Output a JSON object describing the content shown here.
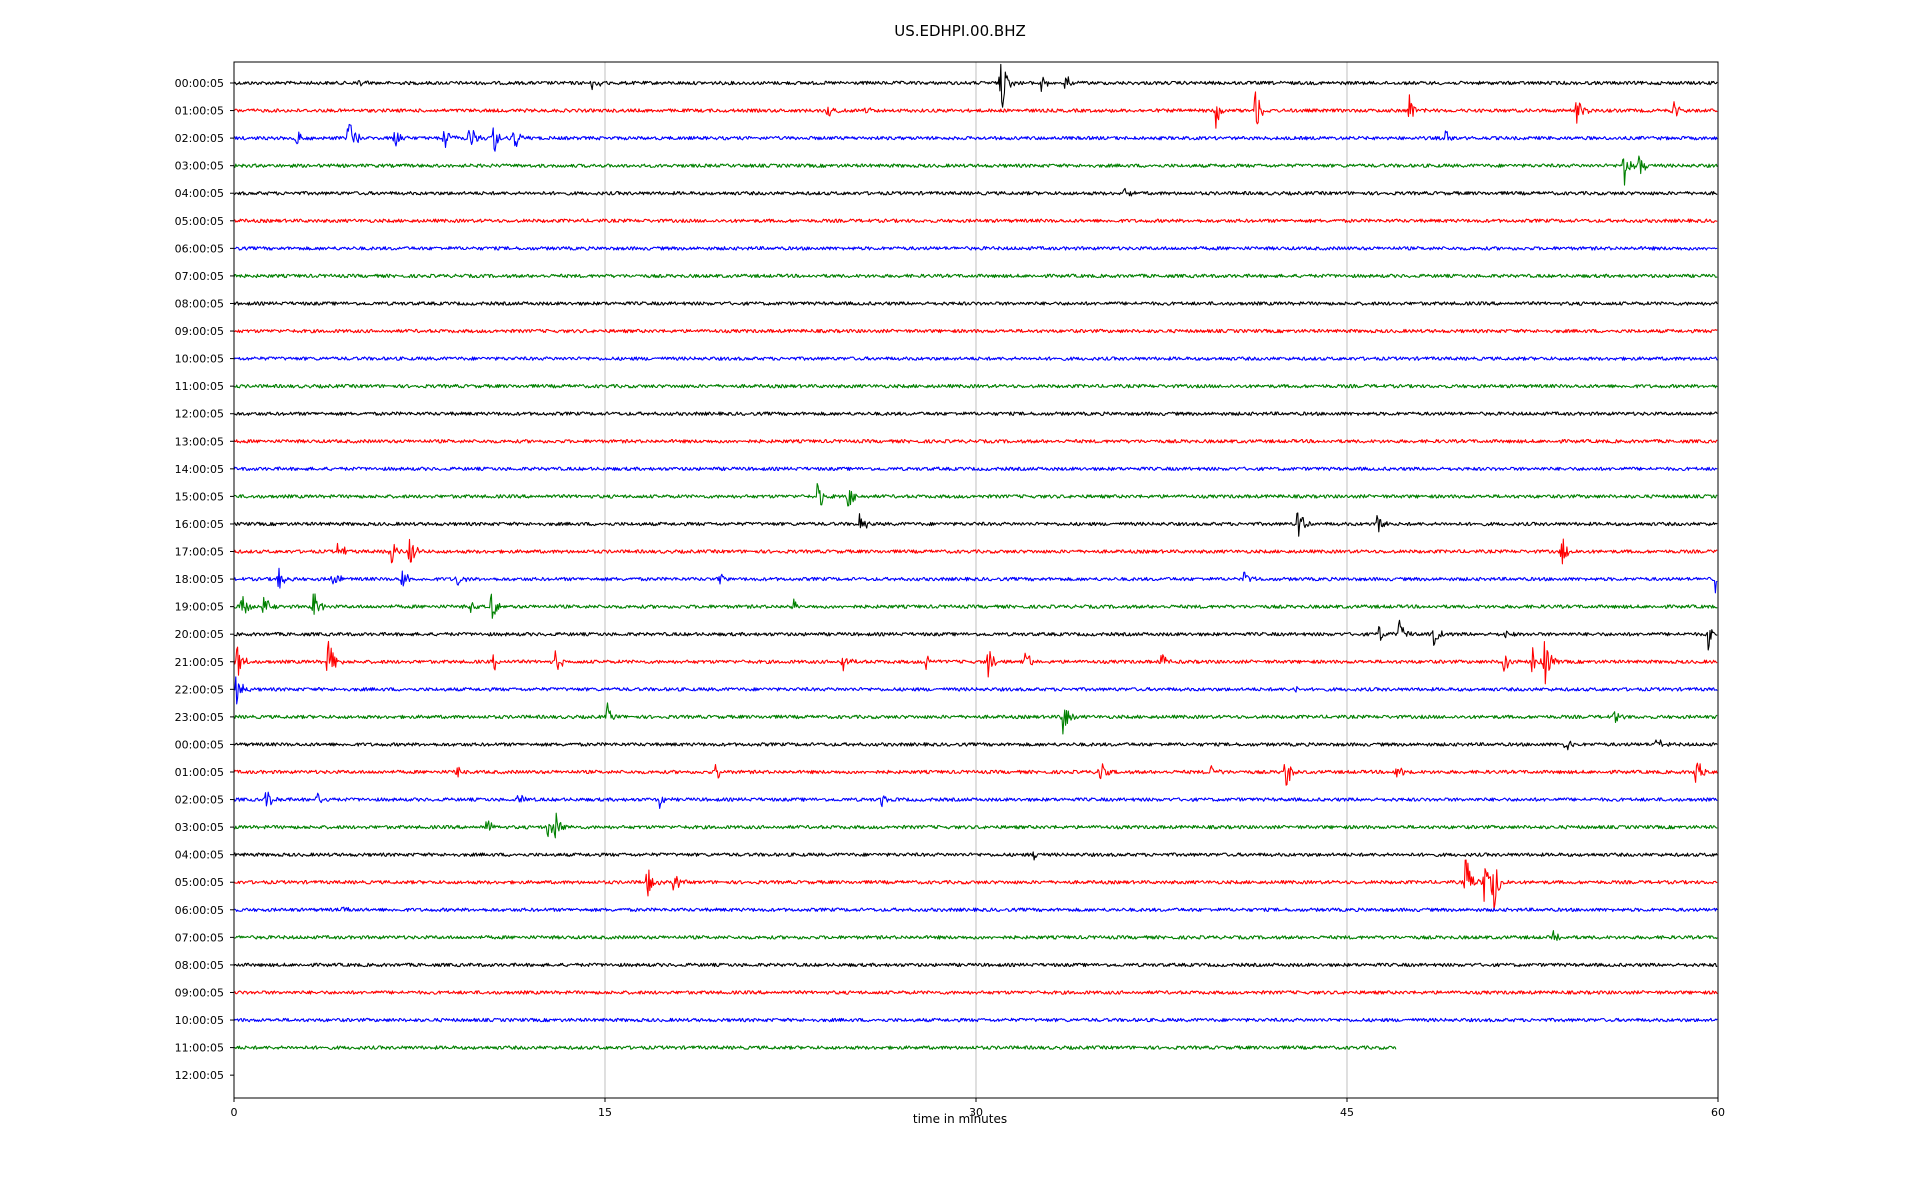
{
  "chart_data": {
    "type": "line",
    "title": "US.EDHPI.00.BHZ",
    "xlabel": "time in minutes",
    "ylabel": "",
    "xlim": [
      0,
      60
    ],
    "xticks": [
      0,
      15,
      30,
      45,
      60
    ],
    "xtick_labels": [
      "0",
      "15",
      "30",
      "45",
      "60"
    ],
    "grid": "vertical lines at x ticks",
    "colors": [
      "#000000",
      "#ff0000",
      "#0000ff",
      "#008000"
    ],
    "row_labels": [
      "00:00:05",
      "01:00:05",
      "02:00:05",
      "03:00:05",
      "04:00:05",
      "05:00:05",
      "06:00:05",
      "07:00:05",
      "08:00:05",
      "09:00:05",
      "10:00:05",
      "11:00:05",
      "12:00:05",
      "13:00:05",
      "14:00:05",
      "15:00:05",
      "16:00:05",
      "17:00:05",
      "18:00:05",
      "19:00:05",
      "20:00:05",
      "21:00:05",
      "22:00:05",
      "23:00:05",
      "00:00:05",
      "01:00:05",
      "02:00:05",
      "03:00:05",
      "04:00:05",
      "05:00:05",
      "06:00:05",
      "07:00:05",
      "08:00:05",
      "09:00:05",
      "10:00:05",
      "11:00:05",
      "12:00:05"
    ],
    "traces": [
      {
        "row": 0,
        "end_minute": 60,
        "events": [
          {
            "t": 5.0,
            "amp": 0.3
          },
          {
            "t": 14.5,
            "amp": 0.45
          },
          {
            "t": 31.0,
            "amp": 1.7
          },
          {
            "t": 32.6,
            "amp": 0.6
          },
          {
            "t": 33.6,
            "amp": 0.5
          }
        ]
      },
      {
        "row": 1,
        "end_minute": 60,
        "events": [
          {
            "t": 24.0,
            "amp": 0.45
          },
          {
            "t": 25.5,
            "amp": 0.3
          },
          {
            "t": 39.7,
            "amp": 0.8
          },
          {
            "t": 41.3,
            "amp": 1.1
          },
          {
            "t": 47.5,
            "amp": 0.9
          },
          {
            "t": 54.3,
            "amp": 0.8
          },
          {
            "t": 58.2,
            "amp": 0.45
          }
        ]
      },
      {
        "row": 2,
        "end_minute": 60,
        "events": [
          {
            "t": 2.5,
            "amp": 0.8
          },
          {
            "t": 4.6,
            "amp": 1.6
          },
          {
            "t": 6.5,
            "amp": 0.8
          },
          {
            "t": 8.5,
            "amp": 0.6
          },
          {
            "t": 9.5,
            "amp": 0.8
          },
          {
            "t": 10.5,
            "amp": 0.8
          },
          {
            "t": 11.3,
            "amp": 0.7
          },
          {
            "t": 49.0,
            "amp": 0.4
          }
        ]
      },
      {
        "row": 3,
        "end_minute": 60,
        "events": [
          {
            "t": 56.2,
            "amp": 1.0
          },
          {
            "t": 56.8,
            "amp": 0.6
          }
        ]
      },
      {
        "row": 4,
        "end_minute": 60,
        "events": [
          {
            "t": 36.0,
            "amp": 0.35
          }
        ]
      },
      {
        "row": 5,
        "end_minute": 60,
        "events": []
      },
      {
        "row": 6,
        "end_minute": 60,
        "events": []
      },
      {
        "row": 7,
        "end_minute": 60,
        "events": []
      },
      {
        "row": 8,
        "end_minute": 60,
        "events": []
      },
      {
        "row": 9,
        "end_minute": 60,
        "events": []
      },
      {
        "row": 10,
        "end_minute": 60,
        "events": []
      },
      {
        "row": 11,
        "end_minute": 60,
        "events": []
      },
      {
        "row": 12,
        "end_minute": 60,
        "events": []
      },
      {
        "row": 13,
        "end_minute": 60,
        "events": []
      },
      {
        "row": 14,
        "end_minute": 60,
        "events": []
      },
      {
        "row": 15,
        "end_minute": 60,
        "events": [
          {
            "t": 23.6,
            "amp": 0.8
          },
          {
            "t": 24.8,
            "amp": 0.7
          }
        ]
      },
      {
        "row": 16,
        "end_minute": 60,
        "events": [
          {
            "t": 25.3,
            "amp": 0.6
          },
          {
            "t": 43.0,
            "amp": 0.9
          },
          {
            "t": 46.2,
            "amp": 0.8
          }
        ]
      },
      {
        "row": 17,
        "end_minute": 60,
        "events": [
          {
            "t": 4.2,
            "amp": 0.6
          },
          {
            "t": 6.3,
            "amp": 0.9
          },
          {
            "t": 7.1,
            "amp": 0.9
          },
          {
            "t": 53.7,
            "amp": 0.9
          }
        ]
      },
      {
        "row": 18,
        "end_minute": 60,
        "events": [
          {
            "t": 1.8,
            "amp": 0.6
          },
          {
            "t": 4.0,
            "amp": 0.55
          },
          {
            "t": 6.8,
            "amp": 0.6
          },
          {
            "t": 9.0,
            "amp": 0.45
          },
          {
            "t": 19.6,
            "amp": 0.5
          },
          {
            "t": 40.8,
            "amp": 0.5
          },
          {
            "t": 59.9,
            "amp": 0.8
          }
        ]
      },
      {
        "row": 19,
        "end_minute": 60,
        "events": [
          {
            "t": 0.3,
            "amp": 0.8
          },
          {
            "t": 1.2,
            "amp": 0.6
          },
          {
            "t": 3.2,
            "amp": 0.9
          },
          {
            "t": 9.5,
            "amp": 0.4
          },
          {
            "t": 10.4,
            "amp": 0.8
          },
          {
            "t": 22.6,
            "amp": 0.35
          }
        ]
      },
      {
        "row": 20,
        "end_minute": 60,
        "events": [
          {
            "t": 46.3,
            "amp": 0.5
          },
          {
            "t": 47.1,
            "amp": 0.8
          },
          {
            "t": 48.5,
            "amp": 0.6
          },
          {
            "t": 51.3,
            "amp": 0.4
          },
          {
            "t": 59.6,
            "amp": 0.7
          }
        ]
      },
      {
        "row": 21,
        "end_minute": 60,
        "events": [
          {
            "t": 0.1,
            "amp": 1.0
          },
          {
            "t": 3.8,
            "amp": 1.2
          },
          {
            "t": 10.5,
            "amp": 0.5
          },
          {
            "t": 13.0,
            "amp": 0.6
          },
          {
            "t": 24.6,
            "amp": 0.5
          },
          {
            "t": 28.0,
            "amp": 0.5
          },
          {
            "t": 30.5,
            "amp": 0.8
          },
          {
            "t": 32.0,
            "amp": 0.6
          },
          {
            "t": 37.5,
            "amp": 0.5
          },
          {
            "t": 51.3,
            "amp": 0.7
          },
          {
            "t": 52.5,
            "amp": 0.8
          },
          {
            "t": 53.0,
            "amp": 1.3
          }
        ]
      },
      {
        "row": 22,
        "end_minute": 60,
        "events": [
          {
            "t": 0.1,
            "amp": 0.9
          },
          {
            "t": 42.8,
            "amp": 0.5
          }
        ]
      },
      {
        "row": 23,
        "end_minute": 60,
        "events": [
          {
            "t": 15.1,
            "amp": 0.6
          },
          {
            "t": 33.5,
            "amp": 1.0
          },
          {
            "t": 55.8,
            "amp": 0.3
          }
        ]
      },
      {
        "row": 24,
        "end_minute": 60,
        "events": [
          {
            "t": 53.8,
            "amp": 0.6
          },
          {
            "t": 57.5,
            "amp": 0.4
          }
        ]
      },
      {
        "row": 25,
        "end_minute": 60,
        "events": [
          {
            "t": 9.0,
            "amp": 0.5
          },
          {
            "t": 19.5,
            "amp": 0.6
          },
          {
            "t": 35.0,
            "amp": 0.6
          },
          {
            "t": 39.5,
            "amp": 0.45
          },
          {
            "t": 42.5,
            "amp": 1.0
          },
          {
            "t": 47.0,
            "amp": 0.5
          },
          {
            "t": 59.1,
            "amp": 0.9
          }
        ]
      },
      {
        "row": 26,
        "end_minute": 60,
        "events": [
          {
            "t": 1.3,
            "amp": 0.6
          },
          {
            "t": 3.3,
            "amp": 0.5
          },
          {
            "t": 11.5,
            "amp": 0.5
          },
          {
            "t": 17.2,
            "amp": 0.5
          },
          {
            "t": 26.2,
            "amp": 0.4
          }
        ]
      },
      {
        "row": 27,
        "end_minute": 60,
        "events": [
          {
            "t": 10.2,
            "amp": 0.4
          },
          {
            "t": 12.7,
            "amp": 0.7
          },
          {
            "t": 13.0,
            "amp": 0.8
          }
        ]
      },
      {
        "row": 28,
        "end_minute": 60,
        "events": [
          {
            "t": 32.3,
            "amp": 0.25
          }
        ]
      },
      {
        "row": 29,
        "end_minute": 60,
        "events": [
          {
            "t": 16.7,
            "amp": 0.8
          },
          {
            "t": 17.8,
            "amp": 0.6
          },
          {
            "t": 49.8,
            "amp": 1.6
          },
          {
            "t": 50.5,
            "amp": 1.2
          },
          {
            "t": 50.9,
            "amp": 1.7
          }
        ]
      },
      {
        "row": 30,
        "end_minute": 60,
        "events": [
          {
            "t": 4.4,
            "amp": 0.25
          }
        ]
      },
      {
        "row": 31,
        "end_minute": 60,
        "events": [
          {
            "t": 53.3,
            "amp": 0.3
          }
        ]
      },
      {
        "row": 32,
        "end_minute": 60,
        "events": []
      },
      {
        "row": 33,
        "end_minute": 60,
        "events": []
      },
      {
        "row": 34,
        "end_minute": 60,
        "events": []
      },
      {
        "row": 35,
        "end_minute": 47,
        "events": []
      }
    ]
  }
}
